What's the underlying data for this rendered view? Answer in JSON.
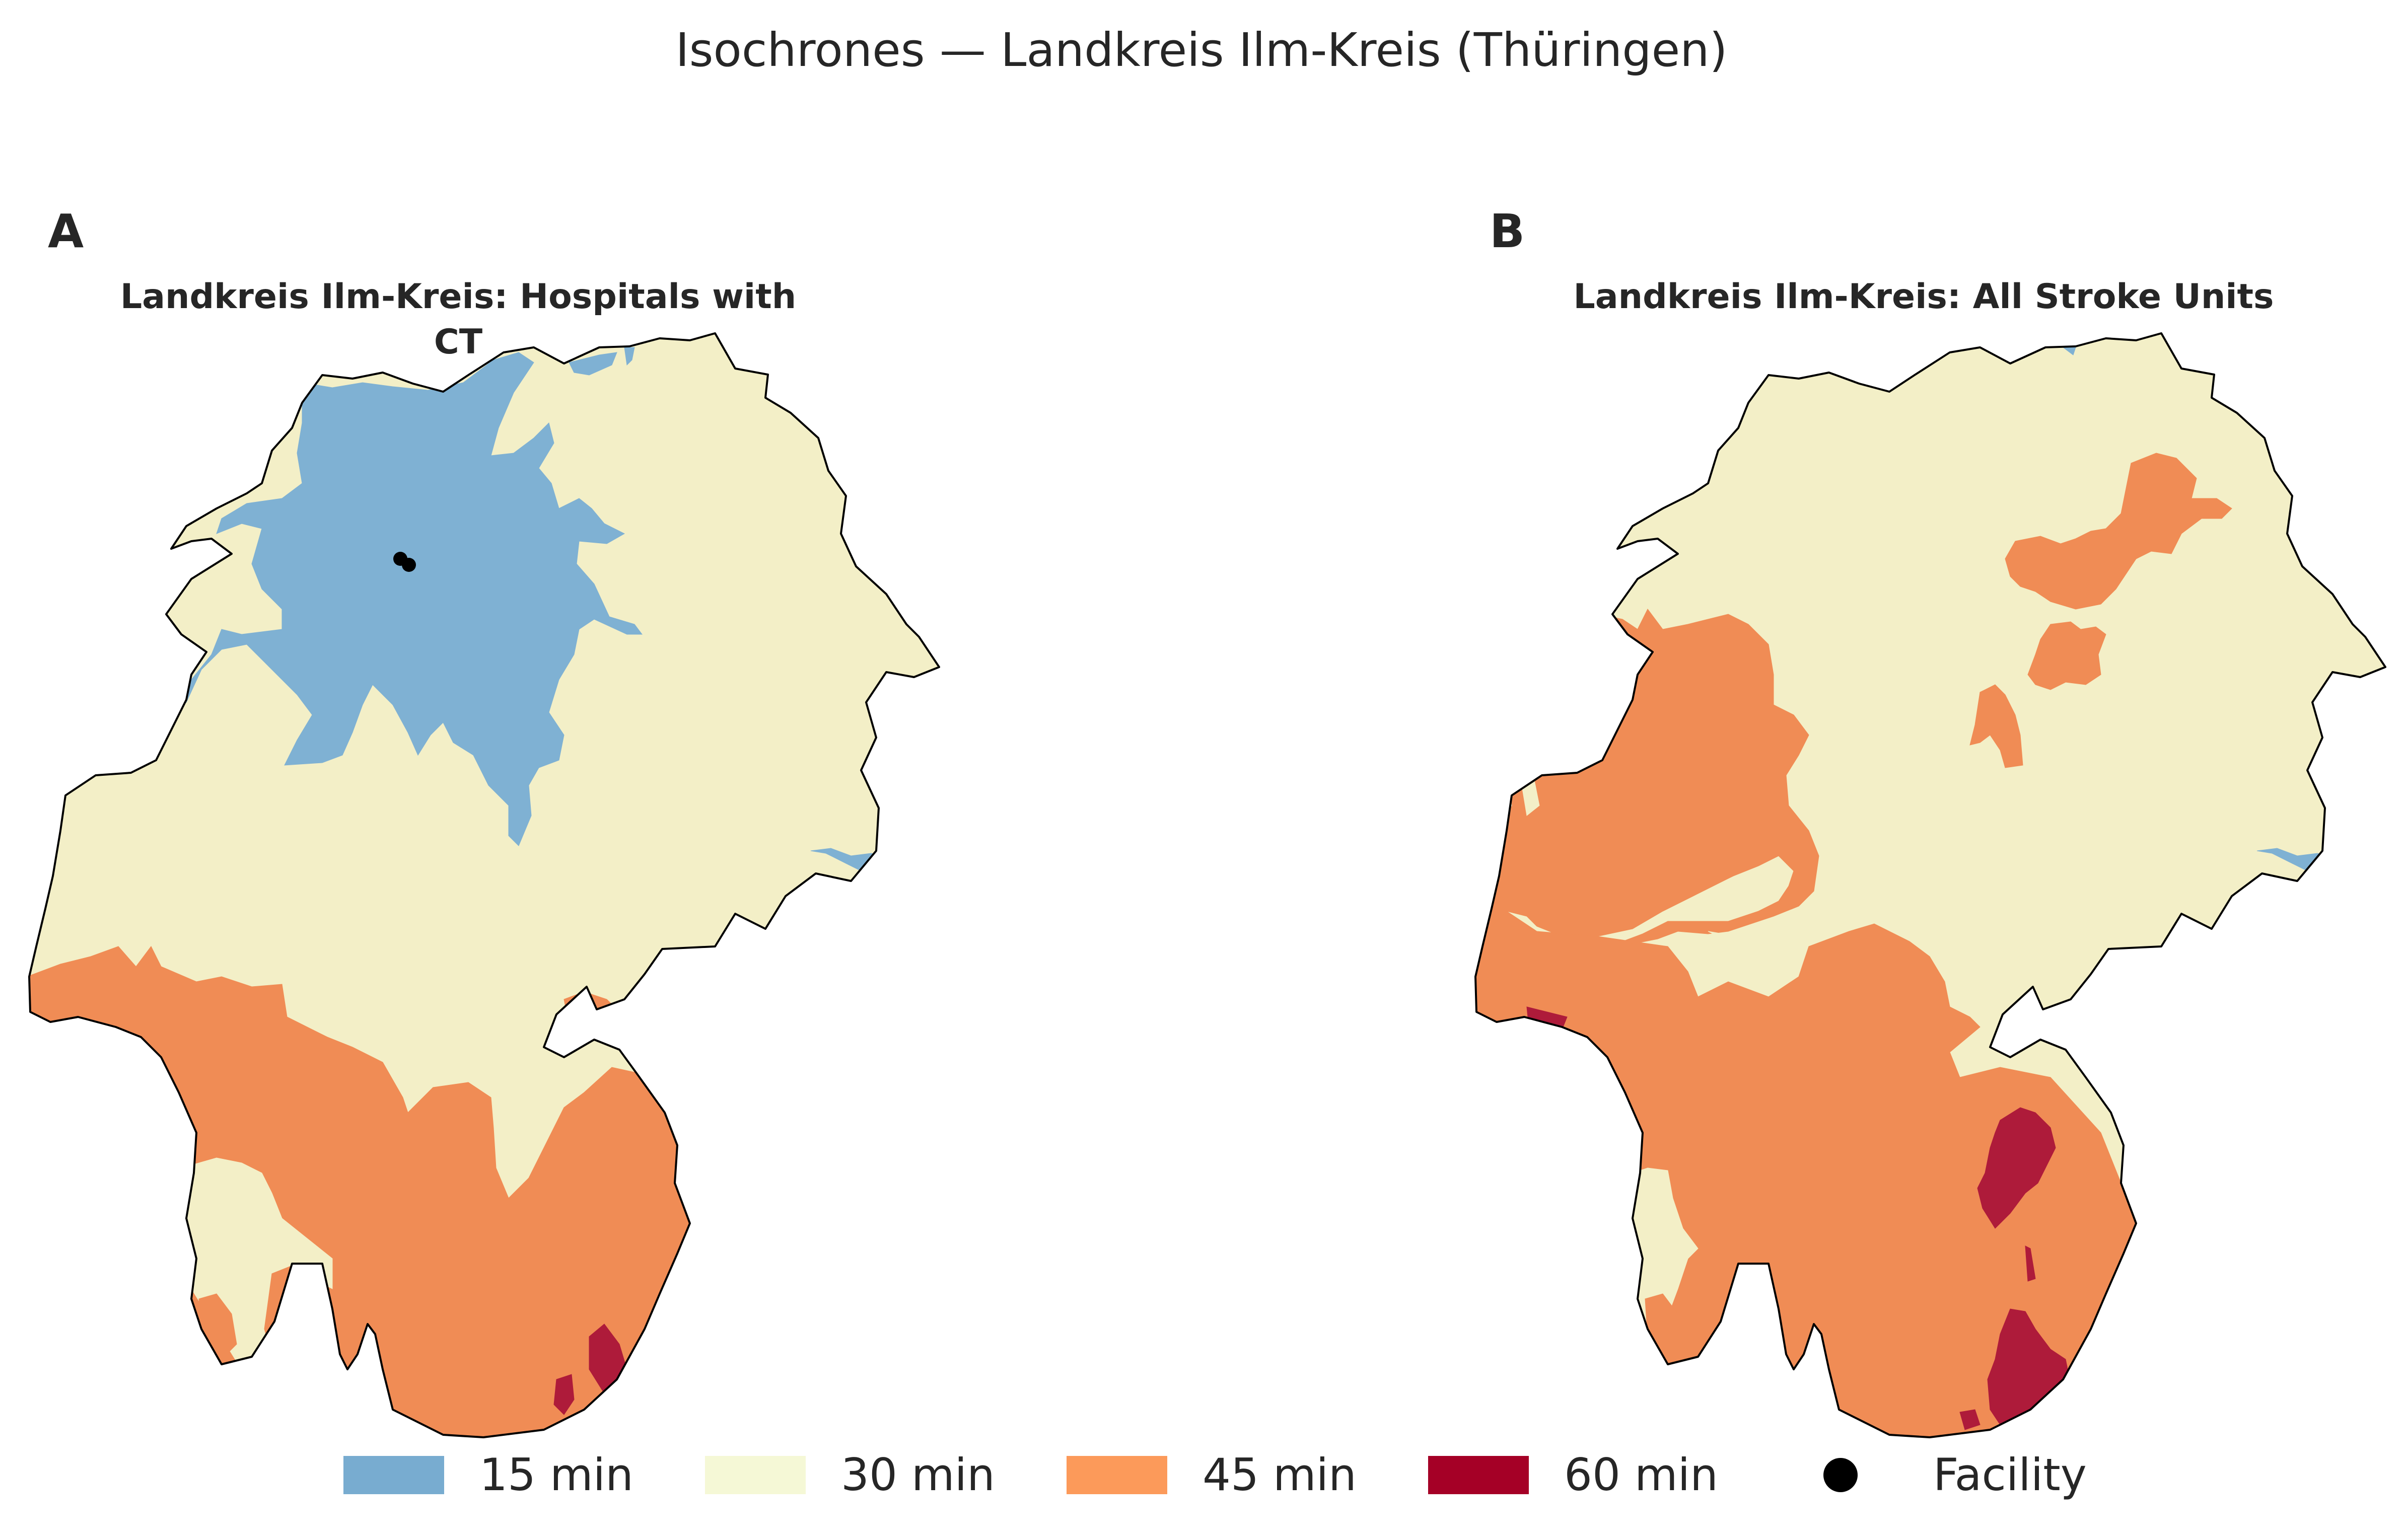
{
  "figure": {
    "suptitle": "Isochrones — Landkreis Ilm-Kreis (Thüringen)"
  },
  "colors": {
    "min15": "#7fb1d3",
    "min30": "#f3efc7",
    "min45": "#f08c55",
    "min60": "#ae1b3a",
    "outline": "#000000",
    "legend15": "#78acd0",
    "legend30": "#f5f8d6",
    "legend45": "#fc9a5a",
    "legend60": "#a50026"
  },
  "panels": [
    {
      "letter": "A",
      "title": "Landkreis Ilm-Kreis: Hospitals with CT",
      "facilities": 2
    },
    {
      "letter": "B",
      "title": "Landkreis Ilm-Kreis: All Stroke Units",
      "facilities": 0
    }
  ],
  "legend": {
    "items": [
      {
        "label": "15 min",
        "icon": "blue-swatch"
      },
      {
        "label": "30 min",
        "icon": "cream-swatch"
      },
      {
        "label": "45 min",
        "icon": "orange-swatch"
      },
      {
        "label": "60 min",
        "icon": "darkred-swatch"
      },
      {
        "label": "Facility",
        "icon": "black-dot"
      }
    ]
  }
}
